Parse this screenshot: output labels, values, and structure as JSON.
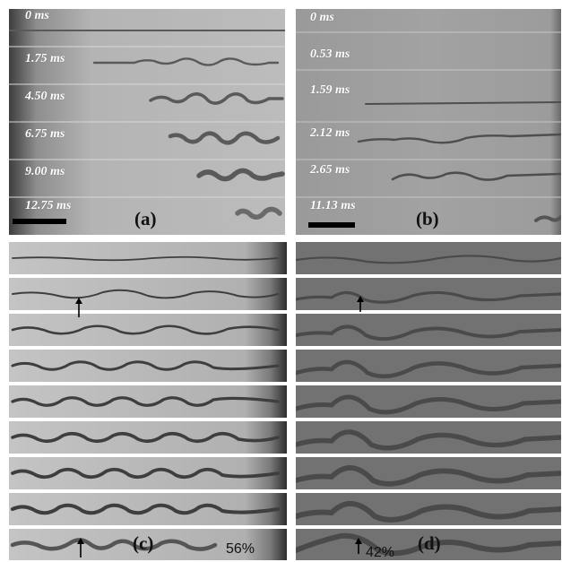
{
  "panel_a": {
    "label": "(a)",
    "times": [
      "0 ms",
      "1.75 ms",
      "4.50 ms",
      "6.75 ms",
      "9.00 ms",
      "12.75 ms"
    ]
  },
  "panel_b": {
    "label": "(b)",
    "times": [
      "0 ms",
      "0.53 ms",
      "1.59 ms",
      "2.12 ms",
      "2.65 ms",
      "11.13 ms"
    ]
  },
  "panel_c": {
    "label": "(c)",
    "percent": "56%"
  },
  "panel_d": {
    "label": "(d)",
    "percent": "42%"
  }
}
